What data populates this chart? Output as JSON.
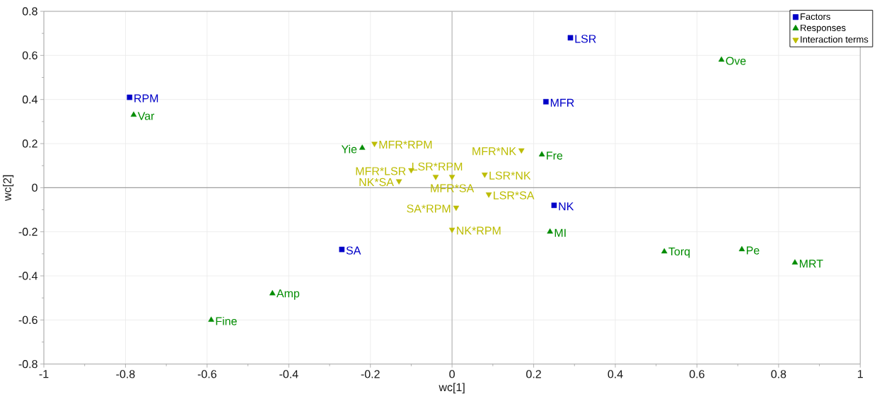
{
  "chart_data": {
    "type": "scatter",
    "xlabel": "wc[1]",
    "ylabel": "wc[2]",
    "xlim": [
      -1,
      1
    ],
    "ylim": [
      -0.8,
      0.8
    ],
    "xticks": [
      -1,
      -0.8,
      -0.6,
      -0.4,
      -0.2,
      0,
      0.2,
      0.4,
      0.6,
      0.8,
      1
    ],
    "yticks": [
      -0.8,
      -0.6,
      -0.4,
      -0.2,
      0,
      0.2,
      0.4,
      0.6,
      0.8
    ],
    "grid": true,
    "legend": "top right",
    "series": [
      {
        "name": "Factors",
        "color": "#0000c8",
        "marker": "square",
        "x": [
          -0.79,
          0.29,
          0.23,
          0.25,
          -0.27
        ],
        "values": [
          0.41,
          0.68,
          0.39,
          -0.08,
          -0.28
        ]
      },
      {
        "name": "Responses",
        "color": "#008c00",
        "marker": "triangle",
        "x": [
          -0.78,
          0.66,
          -0.22,
          0.22,
          0.24,
          0.52,
          0.71,
          0.84,
          -0.44,
          -0.59
        ],
        "values": [
          0.33,
          0.58,
          0.18,
          0.15,
          -0.2,
          -0.29,
          -0.28,
          -0.34,
          -0.48,
          -0.6
        ]
      },
      {
        "name": "Interaction terms",
        "color": "#bcbc00",
        "marker": "triangle-down",
        "x": [
          -0.19,
          0.17,
          -0.1,
          -0.04,
          0,
          -0.13,
          0.08,
          0.09,
          0.01,
          0
        ],
        "values": [
          0.2,
          0.17,
          0.08,
          0.05,
          0.05,
          0.03,
          0.06,
          -0.03,
          -0.09,
          -0.19
        ]
      }
    ],
    "ref_lines": [
      {
        "axis": "x",
        "value": 0,
        "color": "#b4b4b4"
      },
      {
        "axis": "y",
        "value": 0,
        "color": "#a0a0a0"
      }
    ],
    "annotations": [
      {
        "text": "RPM",
        "x": -0.79,
        "y": 0.41
      },
      {
        "text": "LSR",
        "x": 0.29,
        "y": 0.68
      },
      {
        "text": "MFR",
        "x": 0.23,
        "y": 0.39
      },
      {
        "text": "NK",
        "x": 0.25,
        "y": -0.08
      },
      {
        "text": "SA",
        "x": -0.27,
        "y": -0.28
      },
      {
        "text": "Var",
        "x": -0.78,
        "y": 0.33
      },
      {
        "text": "Ove",
        "x": 0.66,
        "y": 0.58
      },
      {
        "text": "Yie",
        "x": -0.22,
        "y": 0.18
      },
      {
        "text": "Fre",
        "x": 0.22,
        "y": 0.15
      },
      {
        "text": "MI",
        "x": 0.24,
        "y": -0.2
      },
      {
        "text": "Torq",
        "x": 0.52,
        "y": -0.29
      },
      {
        "text": "Pe",
        "x": 0.71,
        "y": -0.28
      },
      {
        "text": "MRT",
        "x": 0.84,
        "y": -0.34
      },
      {
        "text": "Amp",
        "x": -0.44,
        "y": -0.48
      },
      {
        "text": "Fine",
        "x": -0.59,
        "y": -0.6
      },
      {
        "text": "MFR*RPM",
        "x": -0.19,
        "y": 0.2
      },
      {
        "text": "MFR*NK",
        "x": 0.17,
        "y": 0.17
      },
      {
        "text": "MFR*LSR",
        "x": -0.1,
        "y": 0.08
      },
      {
        "text": "LSR*RPM",
        "x": -0.04,
        "y": 0.05
      },
      {
        "text": "MFR*SA",
        "x": 0,
        "y": 0.05
      },
      {
        "text": "NK*SA",
        "x": -0.13,
        "y": 0.03
      },
      {
        "text": "LSR*NK",
        "x": 0.08,
        "y": 0.06
      },
      {
        "text": "LSR*SA",
        "x": 0.09,
        "y": -0.03
      },
      {
        "text": "SA*RPM",
        "x": 0.01,
        "y": -0.09
      },
      {
        "text": "NK*RPM",
        "x": 0,
        "y": -0.19
      }
    ]
  }
}
